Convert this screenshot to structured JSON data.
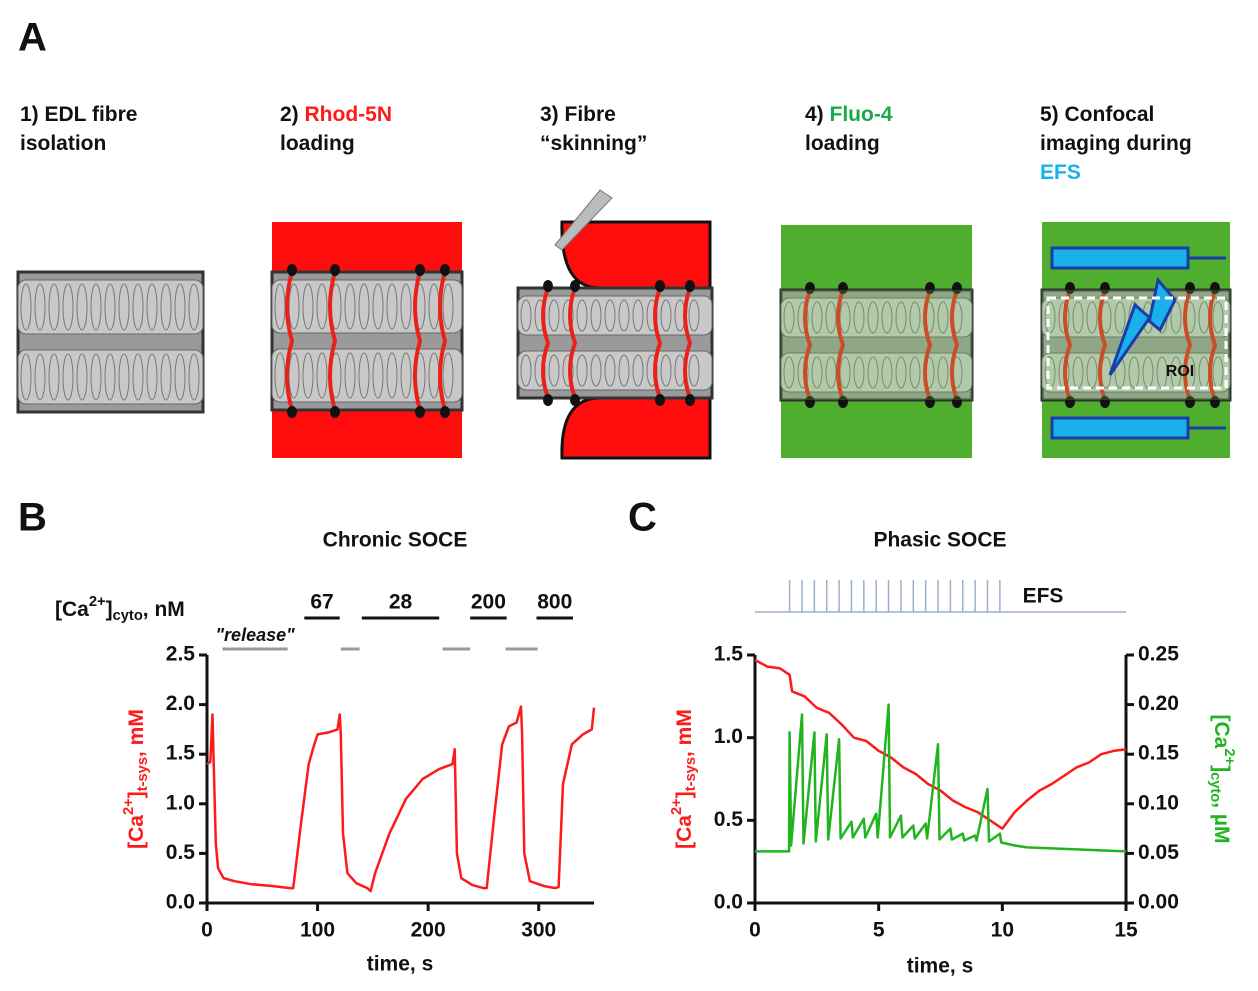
{
  "panel_a": {
    "label": "A",
    "steps": [
      {
        "lines": [
          [
            {
              "text": "1) EDL fibre"
            }
          ],
          [
            {
              "text": "isolation"
            }
          ]
        ]
      },
      {
        "lines": [
          [
            {
              "text": "2) "
            },
            {
              "text": "Rhod-5N",
              "color": "#ff1a1a"
            }
          ],
          [
            {
              "text": "loading"
            }
          ]
        ]
      },
      {
        "lines": [
          [
            {
              "text": "3) Fibre"
            }
          ],
          [
            {
              "text": "“skinning”"
            }
          ]
        ]
      },
      {
        "lines": [
          [
            {
              "text": "4) "
            },
            {
              "text": "Fluo-4",
              "color": "#19a84a"
            }
          ],
          [
            {
              "text": "loading"
            }
          ]
        ]
      },
      {
        "lines": [
          [
            {
              "text": "5) Confocal"
            }
          ],
          [
            {
              "text": "imaging during"
            }
          ],
          [
            {
              "text": "EFS",
              "color": "#1ab0ea"
            }
          ]
        ]
      }
    ],
    "roi_label": "ROI"
  },
  "chart_data": [
    {
      "type": "line",
      "panel": "B",
      "title": "Chronic SOCE",
      "x_label": "time, s",
      "y_label": {
        "color": "#ff1a1a",
        "parts": [
          {
            "text": "[Ca"
          },
          {
            "text": "2+",
            "sup": true
          },
          {
            "text": "]"
          },
          {
            "text": "t-sys",
            "sub": true
          },
          {
            "text": ", mM"
          }
        ]
      },
      "xlim": [
        0,
        350
      ],
      "xticks": [
        0,
        100,
        200,
        300
      ],
      "ylim": [
        0,
        2.5
      ],
      "yticks": [
        {
          "value": 0,
          "label": "0.0"
        },
        0.5,
        {
          "value": 1,
          "label": "1.0"
        },
        1.5,
        {
          "value": 2,
          "label": "2.0"
        },
        2.5
      ],
      "conditions_label": {
        "parts": [
          {
            "text": "[Ca"
          },
          {
            "text": "2+",
            "sup": true
          },
          {
            "text": "]"
          },
          {
            "text": "cyto",
            "sub": true
          },
          {
            "text": ", nM"
          }
        ]
      },
      "conditions": [
        {
          "label": "67",
          "start": 88,
          "end": 120
        },
        {
          "label": "28",
          "start": 140,
          "end": 210
        },
        {
          "label": "200",
          "start": 238,
          "end": 271
        },
        {
          "label": "800",
          "start": 298,
          "end": 331
        }
      ],
      "release_periods": [
        {
          "label": "\"release\"",
          "start": 14,
          "end": 73
        },
        {
          "start": 121,
          "end": 138
        },
        {
          "start": 213,
          "end": 238
        },
        {
          "start": 270,
          "end": 299
        }
      ],
      "series": [
        {
          "color": "#ff1a1a",
          "x": [
            0,
            3,
            5,
            6,
            8,
            10,
            15,
            25,
            40,
            60,
            75,
            78,
            85,
            92,
            97,
            100,
            110,
            118,
            120,
            121,
            123,
            127,
            135,
            145,
            148,
            152,
            165,
            180,
            195,
            210,
            222,
            224,
            226,
            230,
            240,
            250,
            253,
            260,
            267,
            273,
            280,
            284,
            285,
            287,
            292,
            305,
            315,
            318,
            322,
            330,
            340,
            348,
            350
          ],
          "values": [
            1.4,
            1.42,
            1.9,
            1.45,
            0.6,
            0.35,
            0.25,
            0.22,
            0.19,
            0.17,
            0.15,
            0.15,
            0.8,
            1.4,
            1.6,
            1.7,
            1.72,
            1.75,
            1.9,
            1.7,
            0.7,
            0.3,
            0.2,
            0.15,
            0.12,
            0.3,
            0.7,
            1.05,
            1.25,
            1.35,
            1.4,
            1.55,
            0.5,
            0.25,
            0.18,
            0.15,
            0.15,
            0.9,
            1.6,
            1.78,
            1.82,
            1.98,
            1.7,
            0.5,
            0.22,
            0.17,
            0.15,
            0.16,
            1.2,
            1.6,
            1.7,
            1.75,
            1.97
          ]
        }
      ]
    },
    {
      "type": "line",
      "panel": "C",
      "title": "Phasic SOCE",
      "x_label": "time, s",
      "y_label": {
        "color": "#ff1a1a",
        "parts": [
          {
            "text": "[Ca"
          },
          {
            "text": "2+",
            "sup": true
          },
          {
            "text": "]"
          },
          {
            "text": "t-sys",
            "sub": true
          },
          {
            "text": ", mM"
          }
        ]
      },
      "y2_label": {
        "color": "#22b41e",
        "parts": [
          {
            "text": "[Ca"
          },
          {
            "text": "2+",
            "sup": true
          },
          {
            "text": "]"
          },
          {
            "text": "cyto",
            "sub": true
          },
          {
            "text": ", µM"
          }
        ]
      },
      "xlim": [
        0,
        15
      ],
      "xticks": [
        0,
        5,
        10,
        15
      ],
      "ylim": [
        0,
        1.5
      ],
      "yticks": [
        {
          "value": 0,
          "label": "0.0"
        },
        0.5,
        {
          "value": 1,
          "label": "1.0"
        },
        1.5
      ],
      "y2lim": [
        0,
        0.25
      ],
      "y2ticks": [
        {
          "value": 0,
          "label": "0.00"
        },
        0.05,
        {
          "value": 0.1,
          "label": "0.10"
        },
        0.15,
        {
          "value": 0.2,
          "label": "0.20"
        },
        0.25
      ],
      "stimulus_label": "EFS",
      "stimulus_color": "#9bb0c8",
      "stimulus_times": [
        1.4,
        1.9,
        2.4,
        2.9,
        3.4,
        3.9,
        4.4,
        4.9,
        5.4,
        5.9,
        6.4,
        6.9,
        7.4,
        7.9,
        8.4,
        8.9,
        9.4,
        9.9
      ],
      "series": [
        {
          "color": "#ff1a1a",
          "x": [
            0,
            0.5,
            1,
            1.4,
            1.5,
            2,
            2.5,
            3,
            3.5,
            4,
            4.5,
            5,
            5.5,
            6,
            6.5,
            7,
            7.5,
            8,
            8.5,
            9,
            9.5,
            10,
            10.5,
            11,
            11.5,
            12,
            12.5,
            13,
            13.5,
            14,
            14.5,
            15
          ],
          "values": [
            1.47,
            1.43,
            1.42,
            1.38,
            1.28,
            1.25,
            1.18,
            1.15,
            1.08,
            1.0,
            0.98,
            0.92,
            0.88,
            0.82,
            0.78,
            0.72,
            0.68,
            0.62,
            0.58,
            0.55,
            0.5,
            0.45,
            0.55,
            0.62,
            0.68,
            0.72,
            0.77,
            0.82,
            0.85,
            0.9,
            0.92,
            0.93
          ]
        },
        {
          "color": "#22b41e",
          "axis": "y2",
          "x": [
            0,
            1.38,
            1.4,
            1.46,
            1.9,
            1.96,
            2.4,
            2.46,
            2.9,
            2.96,
            3.4,
            3.46,
            3.9,
            3.96,
            4.4,
            4.46,
            4.9,
            4.96,
            5.4,
            5.46,
            5.9,
            5.96,
            6.4,
            6.46,
            6.9,
            6.96,
            7.4,
            7.46,
            7.9,
            7.96,
            8.4,
            8.46,
            8.9,
            8.96,
            9.4,
            9.46,
            9.9,
            9.96,
            10.5,
            11,
            12,
            13,
            14,
            15
          ],
          "values": [
            0.052,
            0.052,
            0.172,
            0.058,
            0.19,
            0.06,
            0.172,
            0.062,
            0.17,
            0.064,
            0.165,
            0.065,
            0.082,
            0.066,
            0.085,
            0.066,
            0.09,
            0.066,
            0.2,
            0.066,
            0.088,
            0.066,
            0.078,
            0.065,
            0.08,
            0.065,
            0.16,
            0.064,
            0.075,
            0.064,
            0.07,
            0.063,
            0.068,
            0.063,
            0.115,
            0.062,
            0.07,
            0.061,
            0.058,
            0.056,
            0.055,
            0.054,
            0.053,
            0.052
          ]
        }
      ]
    }
  ]
}
